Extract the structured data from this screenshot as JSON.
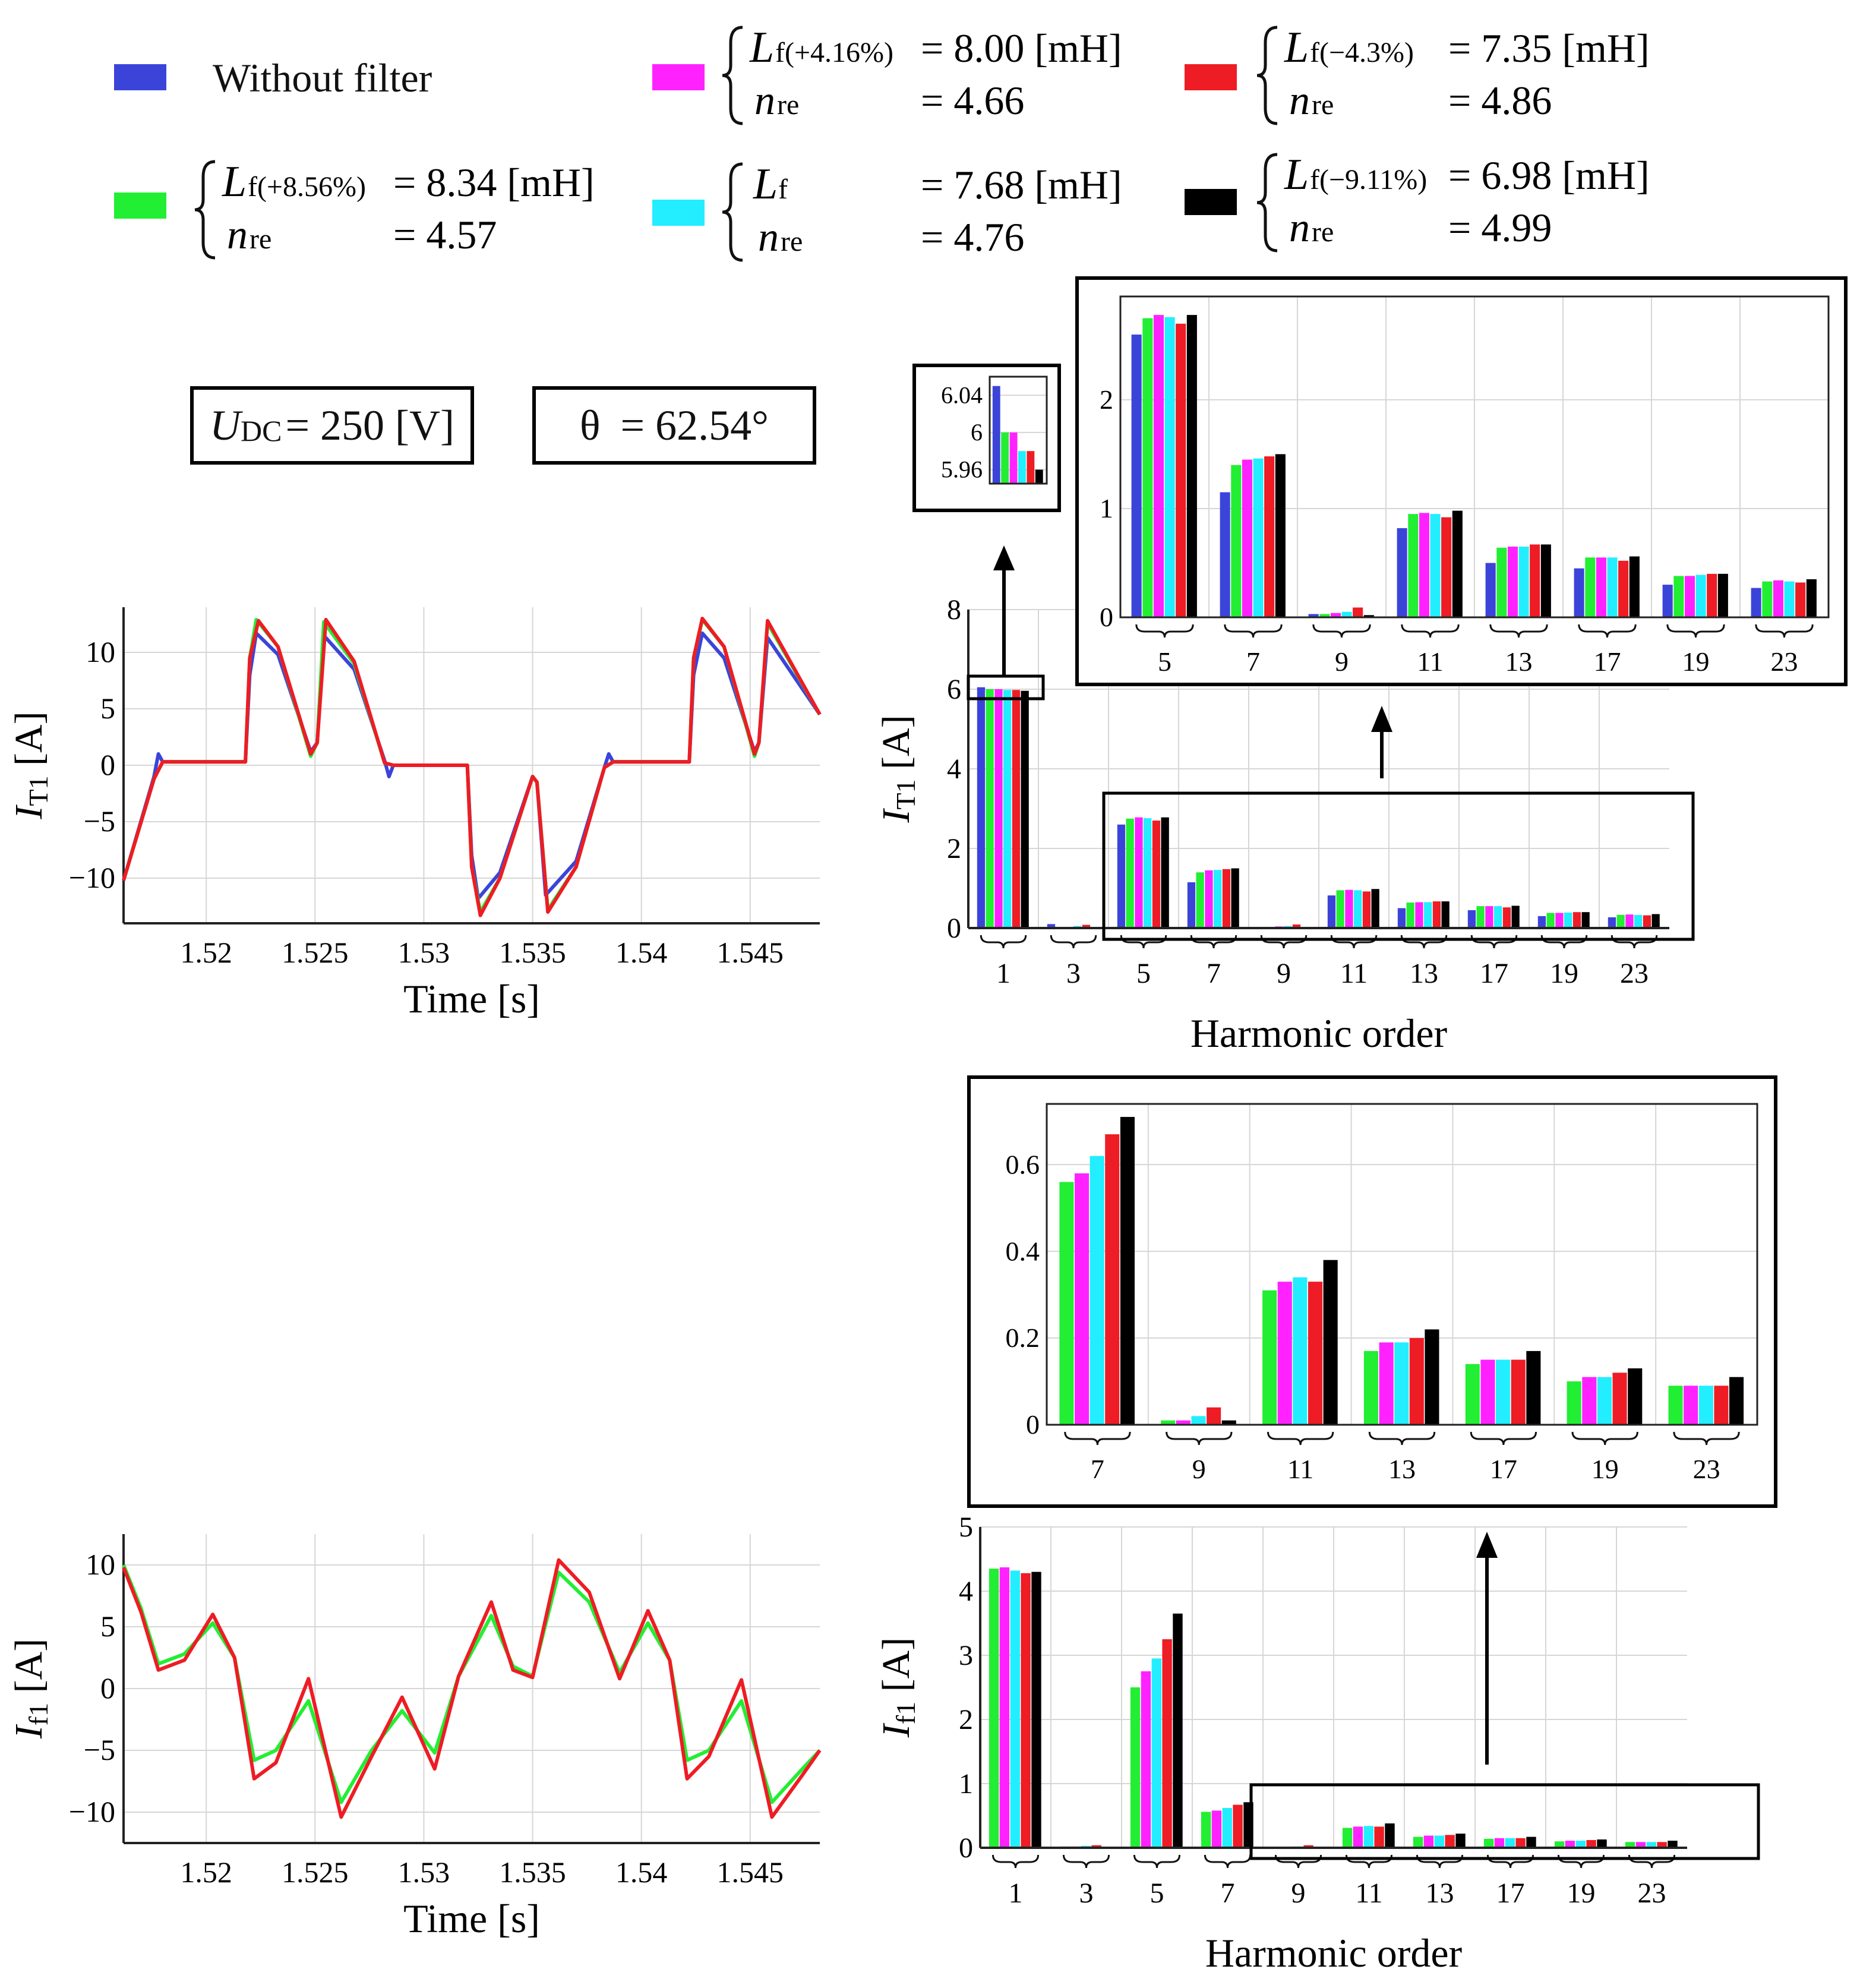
{
  "colors": {
    "without": "#3b44d9",
    "plus856": "#22ee33",
    "plus416": "#ff22ff",
    "nominal": "#22eeff",
    "minus43": "#ee1c24",
    "minus911": "#000000"
  },
  "legend": [
    {
      "key": "without",
      "color": "#3b44d9",
      "label": "Without filter"
    },
    {
      "key": "plus416",
      "color": "#ff22ff",
      "L": "L",
      "Lsub": "f(+4.16%)",
      "Lval": "= 8.00 [mH]",
      "n": "n",
      "nsub": "re",
      "nval": "= 4.66"
    },
    {
      "key": "minus43",
      "color": "#ee1c24",
      "L": "L",
      "Lsub": "f(−4.3%)",
      "Lval": "= 7.35 [mH]",
      "n": "n",
      "nsub": "re",
      "nval": "= 4.86"
    },
    {
      "key": "plus856",
      "color": "#22ee33",
      "L": "L",
      "Lsub": "f(+8.56%)",
      "Lval": "= 8.34 [mH]",
      "n": "n",
      "nsub": "re",
      "nval": "= 4.57"
    },
    {
      "key": "nominal",
      "color": "#22eeff",
      "L": "L",
      "Lsub": "f",
      "Lval": "= 7.68 [mH]",
      "n": "n",
      "nsub": "re",
      "nval": "= 4.76"
    },
    {
      "key": "minus911",
      "color": "#000000",
      "L": "L",
      "Lsub": "f(−9.11%)",
      "Lval": "= 6.98 [mH]",
      "n": "n",
      "nsub": "re",
      "nval": "= 4.99"
    }
  ],
  "annotations": {
    "udc_sym": "U",
    "udc_sub": "DC",
    "udc_val": "= 250 [V]",
    "theta_sym": "θ",
    "theta_val": "= 62.54°"
  },
  "chart_data": [
    {
      "id": "time-it1",
      "type": "line",
      "title": "",
      "xlabel": "Time [s]",
      "ylabel_sym": "I",
      "ylabel_sub": "T1",
      "ylabel_unit": "[A]",
      "xlim": [
        1.5162,
        1.5482
      ],
      "ylim": [
        -14,
        14
      ],
      "xticks": [
        1.52,
        1.525,
        1.53,
        1.535,
        1.54,
        1.545
      ],
      "xtick_labels": [
        "1.52",
        "1.525",
        "1.53",
        "1.535",
        "1.54",
        "1.545"
      ],
      "yticks": [
        -10,
        -5,
        0,
        5,
        10
      ],
      "ytick_labels": [
        "−10",
        "−5",
        "0",
        "5",
        "10"
      ],
      "series": [
        {
          "name": "Without filter",
          "color": "#3b44d9",
          "x": [
            1.5162,
            1.5176,
            1.5178,
            1.518,
            1.5218,
            1.522,
            1.5223,
            1.5233,
            1.5248,
            1.5251,
            1.5254,
            1.5268,
            1.5282,
            1.5284,
            1.5286,
            1.532,
            1.5322,
            1.5325,
            1.5335,
            1.535,
            1.5352,
            1.5356,
            1.537,
            1.5383,
            1.5385,
            1.5387,
            1.5422,
            1.5424,
            1.5428,
            1.5438,
            1.5452,
            1.5454,
            1.5458,
            1.5482
          ],
          "y": [
            -10.2,
            -1.0,
            1.0,
            0.3,
            0.3,
            8.0,
            11.7,
            9.8,
            1.2,
            2.0,
            11.5,
            8.5,
            0.4,
            -1.0,
            0.0,
            0.0,
            -8.0,
            -11.8,
            -9.5,
            -1.0,
            -1.5,
            -11.5,
            -8.5,
            -0.2,
            1.0,
            0.3,
            0.3,
            8.0,
            11.7,
            9.5,
            1.2,
            2.0,
            11.3,
            4.5
          ]
        },
        {
          "name": "Lf(+8.56%)",
          "color": "#22ee33",
          "x": [
            1.5162,
            1.5176,
            1.518,
            1.5218,
            1.522,
            1.5223,
            1.5233,
            1.5248,
            1.5251,
            1.5254,
            1.5268,
            1.5282,
            1.5286,
            1.532,
            1.5322,
            1.5326,
            1.5335,
            1.535,
            1.5352,
            1.5357,
            1.537,
            1.5383,
            1.5387,
            1.5422,
            1.5424,
            1.5428,
            1.5438,
            1.5452,
            1.5454,
            1.5458,
            1.5482
          ],
          "y": [
            -10.2,
            -1.2,
            0.3,
            0.3,
            9.5,
            12.9,
            10.5,
            0.8,
            2.0,
            12.7,
            9.0,
            0.2,
            0.0,
            0.0,
            -9.0,
            -13.0,
            -10.0,
            -1.0,
            -1.5,
            -12.8,
            -9.0,
            -0.2,
            0.3,
            0.3,
            9.5,
            12.9,
            10.5,
            0.8,
            2.0,
            12.6,
            4.5
          ]
        },
        {
          "name": "Lf(−4.3%)",
          "color": "#ee1c24",
          "x": [
            1.5162,
            1.5176,
            1.518,
            1.5218,
            1.522,
            1.5224,
            1.5233,
            1.5248,
            1.5251,
            1.5255,
            1.5268,
            1.5282,
            1.5286,
            1.532,
            1.5322,
            1.5326,
            1.5335,
            1.535,
            1.5352,
            1.5357,
            1.537,
            1.5383,
            1.5387,
            1.5422,
            1.5424,
            1.5428,
            1.5438,
            1.5452,
            1.5454,
            1.5458,
            1.5482
          ],
          "y": [
            -10.2,
            -1.2,
            0.3,
            0.3,
            9.5,
            12.8,
            10.5,
            1.0,
            2.0,
            12.9,
            9.2,
            0.2,
            0.0,
            0.0,
            -9.0,
            -13.3,
            -10.0,
            -1.0,
            -1.5,
            -13.0,
            -9.0,
            -0.2,
            0.3,
            0.3,
            9.5,
            13.0,
            10.5,
            1.0,
            2.0,
            12.8,
            4.5
          ]
        }
      ]
    },
    {
      "id": "harm-it1",
      "type": "bar",
      "xlabel": "Harmonic order",
      "ylabel_sym": "I",
      "ylabel_sub": "T1",
      "ylabel_unit": "[A]",
      "ylim": [
        0,
        8
      ],
      "yticks": [
        0,
        2,
        4,
        6,
        8
      ],
      "ytick_labels": [
        "0",
        "2",
        "4",
        "6",
        "8"
      ],
      "categories": [
        "1",
        "3",
        "5",
        "7",
        "9",
        "11",
        "13",
        "17",
        "19",
        "23"
      ],
      "series": [
        {
          "name": "Without filter",
          "color": "#3b44d9",
          "values": [
            6.05,
            0.1,
            2.6,
            1.15,
            0.03,
            0.82,
            0.5,
            0.45,
            0.3,
            0.27
          ]
        },
        {
          "name": "Lf(+8.56%)",
          "color": "#22ee33",
          "values": [
            6.0,
            0.02,
            2.75,
            1.4,
            0.03,
            0.95,
            0.64,
            0.55,
            0.38,
            0.33
          ]
        },
        {
          "name": "Lf(+4.16%)",
          "color": "#ff22ff",
          "values": [
            6.0,
            0.03,
            2.78,
            1.45,
            0.04,
            0.96,
            0.65,
            0.55,
            0.38,
            0.34
          ]
        },
        {
          "name": "Lf",
          "color": "#22eeff",
          "values": [
            5.98,
            0.05,
            2.76,
            1.46,
            0.05,
            0.95,
            0.65,
            0.55,
            0.39,
            0.33
          ]
        },
        {
          "name": "Lf(−4.3%)",
          "color": "#ee1c24",
          "values": [
            5.98,
            0.08,
            2.7,
            1.48,
            0.09,
            0.92,
            0.67,
            0.52,
            0.4,
            0.32
          ]
        },
        {
          "name": "Lf(−9.11%)",
          "color": "#000000",
          "values": [
            5.96,
            0.02,
            2.78,
            1.5,
            0.02,
            0.98,
            0.67,
            0.56,
            0.4,
            0.35
          ]
        }
      ]
    },
    {
      "id": "harm-it1-zoom",
      "type": "bar",
      "ylim": [
        0,
        2.95
      ],
      "yticks": [
        0,
        1,
        2
      ],
      "ytick_labels": [
        "0",
        "1",
        "2"
      ],
      "categories": [
        "5",
        "7",
        "9",
        "11",
        "13",
        "17",
        "19",
        "23"
      ],
      "series_ref": "harm-it1",
      "category_offset": 2
    },
    {
      "id": "harm-it1-fund-zoom",
      "type": "bar",
      "ylim": [
        5.945,
        6.06
      ],
      "yticks": [
        5.96,
        6,
        6.04
      ],
      "ytick_labels": [
        "5.96",
        "6",
        "6.04"
      ],
      "categories": [
        "1"
      ],
      "series_ref": "harm-it1",
      "category_offset": 0
    },
    {
      "id": "time-if1",
      "type": "line",
      "xlabel": "Time [s]",
      "ylabel_sym": "I",
      "ylabel_sub": "f1",
      "ylabel_unit": "[A]",
      "xlim": [
        1.5162,
        1.5482
      ],
      "ylim": [
        -12.5,
        12.5
      ],
      "xticks": [
        1.52,
        1.525,
        1.53,
        1.535,
        1.54,
        1.545
      ],
      "xtick_labels": [
        "1.52",
        "1.525",
        "1.53",
        "1.535",
        "1.54",
        "1.545"
      ],
      "yticks": [
        -10,
        -5,
        0,
        5,
        10
      ],
      "ytick_labels": [
        "−10",
        "−5",
        "0",
        "5",
        "10"
      ],
      "series": [
        {
          "name": "Lf(+8.56%)",
          "color": "#22ee33",
          "x": [
            1.5162,
            1.517,
            1.5178,
            1.519,
            1.5203,
            1.5213,
            1.5222,
            1.5232,
            1.5247,
            1.5262,
            1.5276,
            1.529,
            1.5305,
            1.5316,
            1.5331,
            1.5341,
            1.535,
            1.5362,
            1.5376,
            1.539,
            1.5403,
            1.5413,
            1.5421,
            1.5431,
            1.5446,
            1.546,
            1.5474,
            1.5482
          ],
          "y": [
            10.0,
            6.5,
            2.0,
            2.8,
            5.3,
            2.5,
            -5.8,
            -5.0,
            -1.0,
            -9.2,
            -5.0,
            -1.8,
            -5.2,
            1.0,
            5.9,
            1.8,
            1.0,
            9.4,
            7.0,
            1.3,
            5.3,
            2.3,
            -5.8,
            -5.0,
            -1.0,
            -9.2,
            -6.5,
            -5.0
          ]
        },
        {
          "name": "Lf(−4.3%)",
          "color": "#ee1c24",
          "x": [
            1.5162,
            1.517,
            1.5178,
            1.519,
            1.5203,
            1.5213,
            1.5222,
            1.5232,
            1.5247,
            1.5262,
            1.5276,
            1.529,
            1.5305,
            1.5316,
            1.5331,
            1.5341,
            1.535,
            1.5362,
            1.5376,
            1.539,
            1.5403,
            1.5413,
            1.5421,
            1.5431,
            1.5446,
            1.546,
            1.5474,
            1.5482
          ],
          "y": [
            9.8,
            6.2,
            1.5,
            2.3,
            6.0,
            2.5,
            -7.3,
            -6.0,
            0.8,
            -10.4,
            -5.5,
            -0.7,
            -6.5,
            1.0,
            7.0,
            1.5,
            0.9,
            10.4,
            7.8,
            0.8,
            6.3,
            2.3,
            -7.3,
            -5.5,
            0.7,
            -10.4,
            -7.0,
            -5.0
          ]
        }
      ]
    },
    {
      "id": "harm-if1",
      "type": "bar",
      "xlabel": "Harmonic order",
      "ylabel_sym": "I",
      "ylabel_sub": "f1",
      "ylabel_unit": "[A]",
      "ylim": [
        0,
        5
      ],
      "yticks": [
        0,
        1,
        2,
        3,
        4,
        5
      ],
      "ytick_labels": [
        "0",
        "1",
        "2",
        "3",
        "4",
        "5"
      ],
      "categories": [
        "1",
        "3",
        "5",
        "7",
        "9",
        "11",
        "13",
        "17",
        "19",
        "23"
      ],
      "series": [
        {
          "name": "Lf(+8.56%)",
          "color": "#22ee33",
          "values": [
            4.35,
            0.02,
            2.5,
            0.56,
            0.01,
            0.31,
            0.17,
            0.14,
            0.1,
            0.09
          ]
        },
        {
          "name": "Lf(+4.16%)",
          "color": "#ff22ff",
          "values": [
            4.37,
            0.02,
            2.75,
            0.58,
            0.01,
            0.33,
            0.19,
            0.15,
            0.11,
            0.09
          ]
        },
        {
          "name": "Lf",
          "color": "#22eeff",
          "values": [
            4.32,
            0.03,
            2.95,
            0.62,
            0.02,
            0.34,
            0.19,
            0.15,
            0.11,
            0.09
          ]
        },
        {
          "name": "Lf(−4.3%)",
          "color": "#ee1c24",
          "values": [
            4.28,
            0.04,
            3.25,
            0.67,
            0.04,
            0.33,
            0.2,
            0.15,
            0.12,
            0.09
          ]
        },
        {
          "name": "Lf(−9.11%)",
          "color": "#000000",
          "values": [
            4.3,
            0.01,
            3.65,
            0.71,
            0.01,
            0.38,
            0.22,
            0.17,
            0.13,
            0.11
          ]
        }
      ]
    },
    {
      "id": "harm-if1-zoom",
      "type": "bar",
      "ylim": [
        0,
        0.74
      ],
      "yticks": [
        0,
        0.2,
        0.4,
        0.6
      ],
      "ytick_labels": [
        "0",
        "0.2",
        "0.4",
        "0.6"
      ],
      "categories": [
        "7",
        "9",
        "11",
        "13",
        "17",
        "19",
        "23"
      ],
      "series_ref": "harm-if1",
      "category_offset": 3
    }
  ]
}
